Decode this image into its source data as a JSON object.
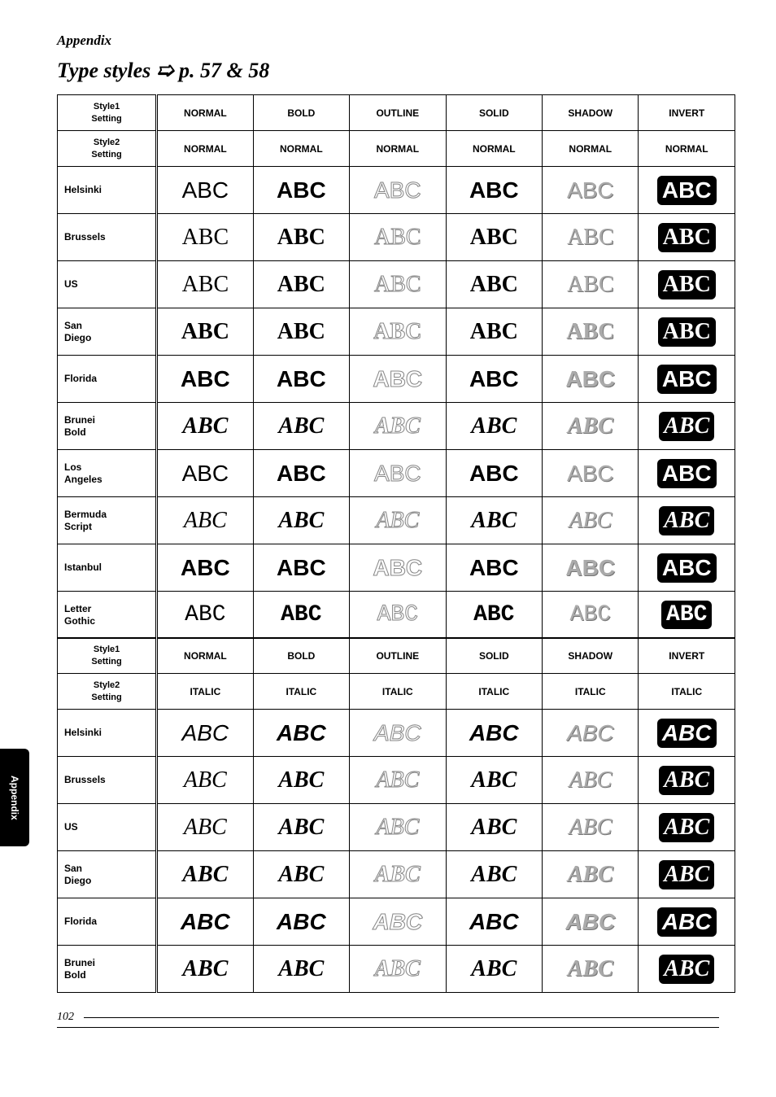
{
  "header": "Appendix",
  "title": "Type styles ➯ p. 57 & 58",
  "sideTab": "Appendix",
  "pageNumber": "102",
  "sampleText": "ABC",
  "style1Label": "Style1 Setting",
  "style2Label": "Style2 Setting",
  "columns": [
    "NORMAL",
    "BOLD",
    "OUTLINE",
    "SOLID",
    "SHADOW",
    "INVERT"
  ],
  "table1": {
    "style2Row": [
      "NORMAL",
      "NORMAL",
      "NORMAL",
      "NORMAL",
      "NORMAL",
      "NORMAL"
    ],
    "fonts": [
      {
        "name": "Helsinki",
        "class": "ff-helsinki"
      },
      {
        "name": "Brussels",
        "class": "ff-brussels"
      },
      {
        "name": "US",
        "class": "ff-us"
      },
      {
        "name": "San Diego",
        "class": "ff-sandiego"
      },
      {
        "name": "Florida",
        "class": "ff-florida"
      },
      {
        "name": "Brunei Bold",
        "class": "ff-brunei"
      },
      {
        "name": "Los Angeles",
        "class": "ff-la"
      },
      {
        "name": "Bermuda Script",
        "class": "ff-bermuda"
      },
      {
        "name": "Istanbul",
        "class": "ff-istanbul"
      },
      {
        "name": "Letter Gothic",
        "class": "ff-letter"
      }
    ],
    "styleClasses": [
      "normal",
      "bold",
      "outline",
      "bold",
      "shadow",
      "invert bold"
    ],
    "italic": false
  },
  "table2": {
    "style2Row": [
      "ITALIC",
      "ITALIC",
      "ITALIC",
      "ITALIC",
      "ITALIC",
      "ITALIC"
    ],
    "fonts": [
      {
        "name": "Helsinki",
        "class": "ff-helsinki"
      },
      {
        "name": "Brussels",
        "class": "ff-brussels"
      },
      {
        "name": "US",
        "class": "ff-us"
      },
      {
        "name": "San Diego",
        "class": "ff-sandiego"
      },
      {
        "name": "Florida",
        "class": "ff-florida"
      },
      {
        "name": "Brunei Bold",
        "class": "ff-brunei"
      }
    ],
    "styleClasses": [
      "normal italic",
      "bold italic",
      "outline italic",
      "bold italic",
      "shadow italic",
      "invert bold italic"
    ],
    "italic": true
  }
}
